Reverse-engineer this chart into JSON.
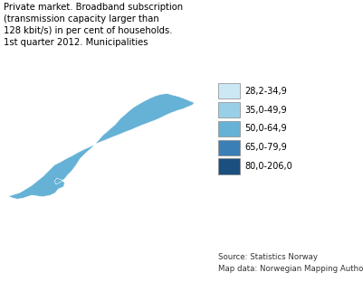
{
  "title_lines": [
    "Private market. Broadband subscription",
    "(transmission capacity larger than",
    "128 kbit/s) in per cent of households.",
    "1st quarter 2012. Municipalities"
  ],
  "legend_labels": [
    "28,2-34,9",
    "35,0-49,9",
    "50,0-64,9",
    "65,0-79,9",
    "80,0-206,0"
  ],
  "legend_colors": [
    "#cce8f4",
    "#99d0e8",
    "#66b2d6",
    "#3a7fb5",
    "#1a4f80"
  ],
  "source_lines": [
    "Source: Statistics Norway",
    "Map data: Norwegian Mapping Authority"
  ],
  "background_color": "#ffffff",
  "fig_width": 4.01,
  "fig_height": 3.22,
  "dpi": 100,
  "title_fontsize": 7.2,
  "legend_fontsize": 7.0,
  "source_fontsize": 6.2,
  "lon_min": 4.0,
  "lon_max": 32.0,
  "lat_min": 57.5,
  "lat_max": 71.5
}
